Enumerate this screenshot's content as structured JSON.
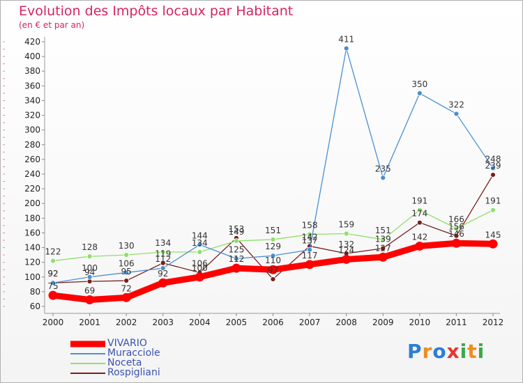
{
  "chart_data": {
    "type": "line",
    "title": "Evolution des Impôts locaux par Habitant",
    "subtitle": "(en € et par an)",
    "x": [
      "2000",
      "2001",
      "2002",
      "2003",
      "2004",
      "2005",
      "2006",
      "2007",
      "2008",
      "2009",
      "2010",
      "2011",
      "2012"
    ],
    "ylim": [
      60,
      420
    ],
    "yticks": [
      60,
      80,
      100,
      120,
      140,
      160,
      180,
      200,
      220,
      240,
      260,
      280,
      300,
      320,
      340,
      360,
      380,
      400,
      420
    ],
    "grid": false,
    "legend_position": "bottom-left",
    "series": [
      {
        "name": "VIVARIO",
        "color": "#ff0000",
        "emphasis": true,
        "values": [
          75,
          69,
          72,
          92,
          100,
          112,
          110,
          117,
          124,
          127,
          142,
          146,
          145
        ],
        "labels": [
          "75",
          "69",
          "72",
          "92",
          "100",
          "112",
          "110",
          "117",
          "124",
          "127",
          "142",
          "146",
          "145"
        ]
      },
      {
        "name": "Muracciole",
        "color": "#4a8fd0",
        "values": [
          92,
          100,
          106,
          112,
          144,
          125,
          129,
          137,
          411,
          235,
          350,
          322,
          248
        ],
        "labels": [
          "92",
          "100",
          "106",
          "112",
          "144",
          "125",
          "129",
          "137",
          "411",
          "235",
          "350",
          "322",
          "248"
        ]
      },
      {
        "name": "Noceta",
        "color": "#8ee06a",
        "values": [
          122,
          128,
          130,
          134,
          134,
          149,
          151,
          158,
          159,
          151,
          191,
          166,
          191
        ],
        "labels": [
          "122",
          "128",
          "130",
          "134",
          "134",
          "149",
          "151",
          "158",
          "159",
          "151",
          "191",
          "166",
          "191"
        ]
      },
      {
        "name": "Rospigliani",
        "color": "#7a1e1e",
        "values": [
          92,
          94,
          95,
          119,
          106,
          153,
          97,
          142,
          132,
          139,
          174,
          156,
          239
        ],
        "labels": [
          "92",
          "94",
          "95",
          "119",
          "106",
          "153",
          "97",
          "142",
          "132",
          "139",
          "174",
          "156",
          "239"
        ]
      }
    ]
  },
  "brand": {
    "name": "Proxiti",
    "letters": [
      {
        "ch": "P",
        "color": "#2a7fd4"
      },
      {
        "ch": "r",
        "color": "#f08c1a"
      },
      {
        "ch": "o",
        "color": "#2a7fd4"
      },
      {
        "ch": "x",
        "color": "#e8362d"
      },
      {
        "ch": "i",
        "color": "#3aa84a"
      },
      {
        "ch": "t",
        "color": "#f08c1a"
      },
      {
        "ch": "i",
        "color": "#3aa84a"
      }
    ]
  }
}
